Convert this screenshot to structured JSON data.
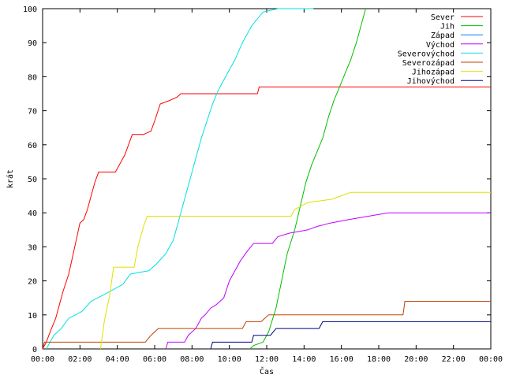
{
  "chart_data": {
    "type": "line",
    "title": "",
    "xlabel": "Čas",
    "ylabel": "krát",
    "x_unit": "time of day (hours)",
    "xlim": [
      0,
      24
    ],
    "ylim": [
      0,
      100
    ],
    "grid": false,
    "legend_position": "top-right",
    "x_ticks": [
      {
        "value": 0,
        "label": "00:00"
      },
      {
        "value": 2,
        "label": "02:00"
      },
      {
        "value": 4,
        "label": "04:00"
      },
      {
        "value": 6,
        "label": "06:00"
      },
      {
        "value": 8,
        "label": "08:00"
      },
      {
        "value": 10,
        "label": "10:00"
      },
      {
        "value": 12,
        "label": "12:00"
      },
      {
        "value": 14,
        "label": "14:00"
      },
      {
        "value": 16,
        "label": "16:00"
      },
      {
        "value": 18,
        "label": "18:00"
      },
      {
        "value": 20,
        "label": "20:00"
      },
      {
        "value": 22,
        "label": "22:00"
      },
      {
        "value": 24,
        "label": "00:00"
      }
    ],
    "y_ticks": [
      0,
      10,
      20,
      30,
      40,
      50,
      60,
      70,
      80,
      90,
      100
    ],
    "series": [
      {
        "name": "Sever",
        "color": "#ff0000",
        "points": [
          [
            0,
            0
          ],
          [
            0.2,
            2
          ],
          [
            0.4,
            5
          ],
          [
            0.7,
            9
          ],
          [
            0.9,
            13
          ],
          [
            1.1,
            17
          ],
          [
            1.4,
            22
          ],
          [
            1.6,
            27
          ],
          [
            1.8,
            32
          ],
          [
            2.0,
            37
          ],
          [
            2.2,
            38
          ],
          [
            2.4,
            41
          ],
          [
            2.6,
            45
          ],
          [
            2.8,
            49
          ],
          [
            3.0,
            52
          ],
          [
            3.5,
            52
          ],
          [
            3.9,
            52
          ],
          [
            4.1,
            54
          ],
          [
            4.4,
            57
          ],
          [
            4.6,
            60
          ],
          [
            4.8,
            63
          ],
          [
            5.4,
            63
          ],
          [
            5.8,
            64
          ],
          [
            6.0,
            67
          ],
          [
            6.3,
            72
          ],
          [
            6.8,
            73
          ],
          [
            7.2,
            74
          ],
          [
            7.4,
            75
          ],
          [
            11.5,
            75
          ],
          [
            11.6,
            77
          ],
          [
            24,
            77
          ]
        ]
      },
      {
        "name": "Jih",
        "color": "#00c000",
        "points": [
          [
            11.1,
            0
          ],
          [
            11.3,
            1
          ],
          [
            11.8,
            2
          ],
          [
            12.1,
            5
          ],
          [
            12.5,
            12
          ],
          [
            12.8,
            20
          ],
          [
            13.1,
            28
          ],
          [
            13.5,
            35
          ],
          [
            13.8,
            42
          ],
          [
            14.1,
            49
          ],
          [
            14.4,
            54
          ],
          [
            14.7,
            58
          ],
          [
            15.0,
            62
          ],
          [
            15.3,
            68
          ],
          [
            15.6,
            73
          ],
          [
            15.9,
            77
          ],
          [
            16.2,
            81
          ],
          [
            16.5,
            85
          ],
          [
            16.8,
            90
          ],
          [
            17.1,
            96
          ],
          [
            17.3,
            100
          ]
        ]
      },
      {
        "name": "Západ",
        "color": "#0080ff",
        "points": []
      },
      {
        "name": "Východ",
        "color": "#c000ff",
        "points": [
          [
            6.6,
            0
          ],
          [
            6.7,
            2
          ],
          [
            7.6,
            2
          ],
          [
            7.8,
            4
          ],
          [
            8.2,
            6
          ],
          [
            8.5,
            9
          ],
          [
            8.7,
            10
          ],
          [
            9.0,
            12
          ],
          [
            9.3,
            13
          ],
          [
            9.7,
            15
          ],
          [
            10.0,
            20
          ],
          [
            10.3,
            23
          ],
          [
            10.6,
            26
          ],
          [
            11.0,
            29
          ],
          [
            11.3,
            31
          ],
          [
            12.3,
            31
          ],
          [
            12.6,
            33
          ],
          [
            13.2,
            34
          ],
          [
            14.2,
            35
          ],
          [
            14.7,
            36
          ],
          [
            15.4,
            37
          ],
          [
            16.4,
            38
          ],
          [
            18.5,
            40
          ],
          [
            24,
            40
          ]
        ]
      },
      {
        "name": "Severovýchod",
        "color": "#00e0e0",
        "points": [
          [
            0.2,
            0
          ],
          [
            0.4,
            2
          ],
          [
            0.6,
            4
          ],
          [
            1.0,
            6
          ],
          [
            1.4,
            9
          ],
          [
            2.1,
            11
          ],
          [
            2.6,
            14
          ],
          [
            3.3,
            16
          ],
          [
            4.3,
            19
          ],
          [
            4.7,
            22
          ],
          [
            5.7,
            23
          ],
          [
            6.1,
            25
          ],
          [
            6.6,
            28
          ],
          [
            7.0,
            32
          ],
          [
            7.3,
            38
          ],
          [
            7.6,
            44
          ],
          [
            7.9,
            50
          ],
          [
            8.2,
            56
          ],
          [
            8.5,
            62
          ],
          [
            8.8,
            67
          ],
          [
            9.1,
            72
          ],
          [
            9.4,
            76
          ],
          [
            9.8,
            80
          ],
          [
            10.3,
            85
          ],
          [
            10.7,
            90
          ],
          [
            11.2,
            95
          ],
          [
            11.8,
            99
          ],
          [
            12.6,
            100
          ],
          [
            14.5,
            100
          ]
        ]
      },
      {
        "name": "Severozápad",
        "color": "#c04000",
        "points": [
          [
            0,
            0
          ],
          [
            0.1,
            2
          ],
          [
            5.5,
            2
          ],
          [
            5.8,
            4
          ],
          [
            6.2,
            6
          ],
          [
            10.7,
            6
          ],
          [
            10.9,
            8
          ],
          [
            11.7,
            8
          ],
          [
            12.1,
            10
          ],
          [
            19.3,
            10
          ],
          [
            19.4,
            14
          ],
          [
            24,
            14
          ]
        ]
      },
      {
        "name": "Jihozápad",
        "color": "#e0e000",
        "points": [
          [
            3.1,
            0
          ],
          [
            3.3,
            8
          ],
          [
            3.6,
            16
          ],
          [
            3.8,
            24
          ],
          [
            4.9,
            24
          ],
          [
            5.1,
            30
          ],
          [
            5.4,
            36
          ],
          [
            5.6,
            39
          ],
          [
            13.3,
            39
          ],
          [
            13.5,
            41
          ],
          [
            14.2,
            43
          ],
          [
            15.5,
            44
          ],
          [
            16.5,
            46
          ],
          [
            24,
            46
          ]
        ]
      },
      {
        "name": "Jihovýchod",
        "color": "#000080",
        "points": [
          [
            9.0,
            0
          ],
          [
            9.1,
            2
          ],
          [
            11.2,
            2
          ],
          [
            11.3,
            4
          ],
          [
            12.2,
            4
          ],
          [
            12.5,
            6
          ],
          [
            14.8,
            6
          ],
          [
            15.0,
            8
          ],
          [
            24,
            8
          ]
        ]
      }
    ]
  }
}
